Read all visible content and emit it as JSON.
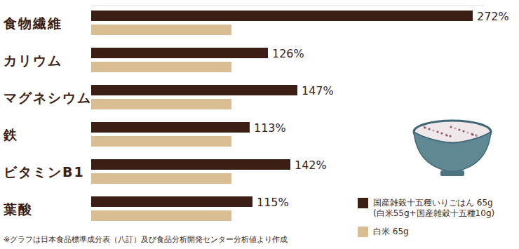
{
  "chart_data": {
    "type": "bar",
    "orientation": "horizontal",
    "categories": [
      "食物繊維",
      "カリウム",
      "マグネシウム",
      "鉄",
      "ビタミンB1",
      "葉酸"
    ],
    "series": [
      {
        "name": "国産雑穀十五種いりごはん 65g\n(白米55g+国産雑穀十五種10g)",
        "color": "#3b1f14",
        "values": [
          272,
          126,
          147,
          113,
          142,
          115
        ],
        "value_labels": [
          "272%",
          "126%",
          "147%",
          "113%",
          "142%",
          "115%"
        ]
      },
      {
        "name": "白米 65g",
        "color": "#d9be93",
        "values": [
          100,
          100,
          100,
          100,
          100,
          100
        ]
      }
    ],
    "xlim": [
      0,
      280
    ],
    "tick_labels": false,
    "grid": false,
    "data_labels": true,
    "legend": "lower right",
    "annotations": [
      "※グラフは日本食品標準成分表（八訂）及び食品分析開発センター分析値より作成"
    ]
  }
}
